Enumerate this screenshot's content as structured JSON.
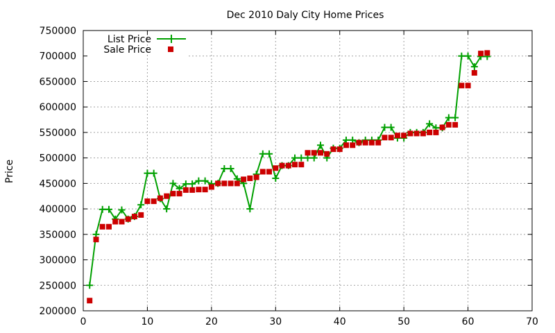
{
  "chart_data": {
    "type": "line",
    "title": "Dec 2010 Daly City Home Prices",
    "xlabel": "",
    "ylabel": "Price",
    "xlim": [
      0,
      70
    ],
    "ylim": [
      200000,
      750000
    ],
    "x_ticks": [
      0,
      10,
      20,
      30,
      40,
      50,
      60,
      70
    ],
    "y_ticks": [
      200000,
      250000,
      300000,
      350000,
      400000,
      450000,
      500000,
      550000,
      600000,
      650000,
      700000,
      750000
    ],
    "grid": true,
    "legend_position": "top-left",
    "series": [
      {
        "name": "List Price",
        "style": "line-with-plus-markers",
        "color": "#00a000",
        "x": [
          1,
          2,
          3,
          4,
          5,
          6,
          7,
          8,
          9,
          10,
          11,
          12,
          13,
          14,
          15,
          16,
          17,
          18,
          19,
          20,
          21,
          22,
          23,
          24,
          25,
          26,
          27,
          28,
          29,
          30,
          31,
          32,
          33,
          34,
          35,
          36,
          37,
          38,
          39,
          40,
          41,
          42,
          43,
          44,
          45,
          46,
          47,
          48,
          49,
          50,
          51,
          52,
          53,
          54,
          55,
          56,
          57,
          58,
          59,
          60,
          61,
          62,
          63
        ],
        "values": [
          250000,
          350000,
          399000,
          399000,
          380000,
          398000,
          380000,
          385000,
          408000,
          470000,
          470000,
          420000,
          400000,
          450000,
          440000,
          449000,
          449000,
          455000,
          455000,
          449000,
          450000,
          479000,
          479000,
          459000,
          450000,
          400000,
          468000,
          508000,
          508000,
          460000,
          485000,
          485000,
          500000,
          500000,
          500000,
          500000,
          525000,
          500000,
          519000,
          519000,
          535000,
          535000,
          530000,
          535000,
          535000,
          535000,
          560000,
          560000,
          539000,
          539000,
          550000,
          550000,
          550000,
          567000,
          559000,
          559000,
          579000,
          579000,
          700000,
          700000,
          679000,
          699000,
          699000
        ]
      },
      {
        "name": "Sale Price",
        "style": "square-markers",
        "color": "#cc0000",
        "x": [
          1,
          2,
          3,
          4,
          5,
          6,
          7,
          8,
          9,
          10,
          11,
          12,
          13,
          14,
          15,
          16,
          17,
          18,
          19,
          20,
          21,
          22,
          23,
          24,
          25,
          26,
          27,
          28,
          29,
          30,
          31,
          32,
          33,
          34,
          35,
          36,
          37,
          38,
          39,
          40,
          41,
          42,
          43,
          44,
          45,
          46,
          47,
          48,
          49,
          50,
          51,
          52,
          53,
          54,
          55,
          56,
          57,
          58,
          59,
          60,
          61,
          62,
          63
        ],
        "values": [
          220000,
          340000,
          365000,
          365000,
          375000,
          375000,
          380000,
          385000,
          388000,
          415000,
          415000,
          421000,
          425000,
          430000,
          430000,
          437000,
          437000,
          438000,
          438000,
          443000,
          450000,
          450000,
          450000,
          450000,
          458000,
          460000,
          462000,
          473000,
          473000,
          480000,
          485000,
          485000,
          487000,
          487000,
          510000,
          510000,
          510000,
          508000,
          517000,
          517000,
          525000,
          525000,
          530000,
          530000,
          530000,
          530000,
          540000,
          540000,
          544000,
          544000,
          548000,
          548000,
          548000,
          550000,
          550000,
          560000,
          565000,
          565000,
          642000,
          642000,
          667000,
          705000,
          706000
        ]
      }
    ]
  }
}
